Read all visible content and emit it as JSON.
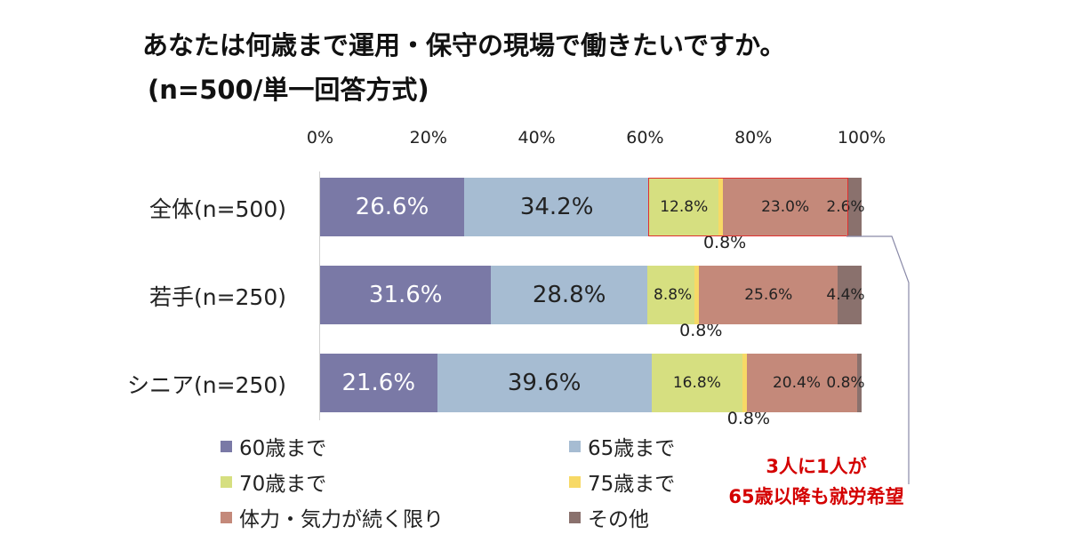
{
  "title": {
    "line1": "あなたは何歳まで運用・保守の現場で働きたいですか。",
    "line2": "(n=500/単一回答方式)"
  },
  "chart_data": {
    "type": "bar",
    "orientation": "horizontal",
    "stacked": true,
    "xlim": [
      0,
      100
    ],
    "ticks": [
      "0%",
      "20%",
      "40%",
      "60%",
      "80%",
      "100%"
    ],
    "categories": [
      "全体(n=500)",
      "若手(n=250)",
      "シニア(n=250)"
    ],
    "series": [
      {
        "name": "60歳まで",
        "color": "#7a79a6",
        "values": [
          26.6,
          31.6,
          21.6
        ],
        "labels": [
          "26.6%",
          "31.6%",
          "21.6%"
        ]
      },
      {
        "name": "65歳まで",
        "color": "#a6bcd2",
        "values": [
          34.2,
          28.8,
          39.6
        ],
        "labels": [
          "34.2%",
          "28.8%",
          "39.6%"
        ]
      },
      {
        "name": "70歳まで",
        "color": "#d6df80",
        "values": [
          12.8,
          8.8,
          16.8
        ],
        "labels": [
          "12.8%",
          "8.8%",
          "16.8%"
        ]
      },
      {
        "name": "75歳まで",
        "color": "#f7d966",
        "values": [
          0.8,
          0.8,
          0.8
        ],
        "labels": [
          "0.8%",
          "0.8%",
          "0.8%"
        ]
      },
      {
        "name": "体力・気力が続く限り",
        "color": "#c4897a",
        "values": [
          23.0,
          25.6,
          20.4
        ],
        "labels": [
          "23.0%",
          "25.6%",
          "20.4%"
        ]
      },
      {
        "name": "その他",
        "color": "#8a716d",
        "values": [
          2.6,
          4.4,
          0.8
        ],
        "labels": [
          "2.6%",
          "4.4%",
          "0.8%"
        ]
      }
    ],
    "legend_position": "bottom",
    "grid": false
  },
  "callout": {
    "line1": "3人に1人が",
    "line2": "65歳以降も就労希望",
    "color": "#d40000"
  }
}
